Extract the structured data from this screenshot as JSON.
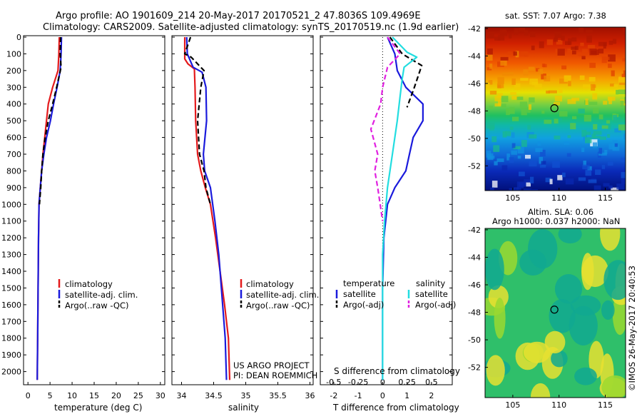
{
  "header": {
    "line1": "Argo profile: AO 1901609_214 20-May-2017 20170521_2 47.8036S 109.4969E",
    "line2": "Climatology: CARS2009. Satellite-adjusted climatology: synTS_20170519.nc (1.9d earlier)"
  },
  "depth_ticks": [
    "0",
    "100",
    "200",
    "300",
    "400",
    "500",
    "600",
    "700",
    "800",
    "900",
    "1000",
    "1100",
    "1200",
    "1300",
    "1400",
    "1500",
    "1600",
    "1700",
    "1800",
    "1900",
    "2000"
  ],
  "panels": {
    "temperature": {
      "xlabel": "temperature (deg C)",
      "xticks": [
        "0",
        "5",
        "10",
        "15",
        "20",
        "25",
        "30"
      ],
      "legend": [
        "climatology",
        "satellite-adj. clim.",
        "Argo(..raw -QC)"
      ]
    },
    "salinity": {
      "xlabel": "salinity",
      "xticks": [
        "34",
        "34.5",
        "35",
        "35.5",
        "36"
      ],
      "legend": [
        "climatology",
        "satellite-adj. clim.",
        "Argo(..raw -QC)"
      ],
      "credit1": "US ARGO PROJECT",
      "credit2": "PI: DEAN ROEMMICH"
    },
    "difference": {
      "top_label": "S difference from climatology",
      "top_ticks": [
        "-0.5",
        "-0.25",
        "0",
        "0.25",
        "0.5"
      ],
      "xlabel": "T difference from climatology",
      "xticks": [
        "-2",
        "-1",
        "0",
        "1",
        "2"
      ],
      "legend_temp_title": "temperature",
      "legend_sal_title": "salinity",
      "legend_temp": [
        "satellite",
        "Argo(-adj)"
      ],
      "legend_sal": [
        "satellite",
        "Argo(-adj)"
      ]
    }
  },
  "maps": {
    "sst": {
      "title": "sat. SST: 7.07  Argo: 7.38",
      "yticks": [
        "-42",
        "-44",
        "-46",
        "-48",
        "-50",
        "-52"
      ],
      "xticks": [
        "105",
        "110",
        "115"
      ]
    },
    "sla": {
      "title1": "Altim. SLA: 0.06",
      "title2": "Argo h1000: 0.037 h2000: NaN",
      "yticks": [
        "-42",
        "-44",
        "-46",
        "-48",
        "-50",
        "-52"
      ],
      "xticks": [
        "105",
        "110",
        "115"
      ]
    },
    "float_position": {
      "lon": 109.4969,
      "lat": -47.8036
    }
  },
  "footer": {
    "stamp": "©IMOS 26-May-2017 20:40:53"
  },
  "colors": {
    "climatology": "#e41a1c",
    "satellite": "#1a1adc",
    "argo": "#000000",
    "sal_satellite": "#22dde0",
    "sal_argo": "#e020e0"
  },
  "chart_data": [
    {
      "type": "line",
      "title": "",
      "xlabel": "temperature (deg C)",
      "ylabel": "",
      "xlim": [
        -1,
        31
      ],
      "ylim": [
        2070,
        0
      ],
      "series": [
        {
          "name": "climatology",
          "x": [
            7.1,
            7.0,
            6.8,
            5.6,
            4.6,
            4.2,
            3.8,
            3.4,
            3.1,
            2.8,
            2.5,
            2.4,
            2.3,
            2.2,
            2.1
          ],
          "y": [
            0,
            100,
            200,
            300,
            400,
            500,
            600,
            700,
            800,
            900,
            1000,
            1200,
            1500,
            1800,
            2050
          ]
        },
        {
          "name": "satellite-adj. clim.",
          "x": [
            7.6,
            7.5,
            7.3,
            6.6,
            5.8,
            5.1,
            4.2,
            3.6,
            3.1,
            2.8,
            2.5,
            2.4,
            2.3,
            2.2,
            2.1
          ],
          "y": [
            0,
            100,
            200,
            300,
            400,
            500,
            600,
            700,
            800,
            900,
            1000,
            1200,
            1500,
            1800,
            2050
          ]
        },
        {
          "name": "Argo(..raw -QC)",
          "x": [
            7.4,
            7.3,
            7.5,
            6.5,
            5.6,
            4.6,
            3.9,
            3.4,
            3.1,
            2.9,
            2.6
          ],
          "y": [
            0,
            100,
            180,
            300,
            400,
            500,
            600,
            700,
            800,
            900,
            1000
          ]
        }
      ]
    },
    {
      "type": "line",
      "title": "",
      "xlabel": "salinity",
      "ylabel": "",
      "xlim": [
        33.85,
        36.05
      ],
      "ylim": [
        2070,
        0
      ],
      "series": [
        {
          "name": "climatology",
          "x": [
            34.05,
            34.05,
            34.1,
            34.2,
            34.21,
            34.22,
            34.25,
            34.3,
            34.37,
            34.45,
            34.53,
            34.6,
            34.67,
            34.73,
            34.75
          ],
          "y": [
            0,
            130,
            160,
            190,
            300,
            500,
            700,
            800,
            900,
            1000,
            1200,
            1400,
            1600,
            1800,
            2050
          ]
        },
        {
          "name": "satellite-adj. clim.",
          "x": [
            34.08,
            34.09,
            34.18,
            34.32,
            34.38,
            34.39,
            34.34,
            34.36,
            34.45,
            34.52,
            34.58,
            34.62,
            34.68,
            34.7
          ],
          "y": [
            0,
            100,
            180,
            210,
            300,
            500,
            700,
            800,
            900,
            1100,
            1300,
            1500,
            1800,
            2050
          ]
        },
        {
          "name": "Argo(..raw -QC)",
          "x": [
            34.14,
            34.05,
            34.15,
            34.35,
            34.3,
            34.25,
            34.28,
            34.35,
            34.38,
            34.45
          ],
          "y": [
            0,
            100,
            120,
            200,
            300,
            500,
            700,
            800,
            900,
            1000
          ]
        }
      ]
    },
    {
      "type": "line",
      "title": "",
      "xlabel": "T difference from climatology",
      "ylabel": "",
      "xlim": [
        -2.55,
        2.85
      ],
      "ylim": [
        2070,
        0
      ],
      "series": [
        {
          "name": "temperature satellite",
          "x": [
            0.2,
            0.5,
            0.6,
            0.95,
            1.65,
            1.65,
            1.25,
            1.1,
            0.95,
            0.5,
            0.2,
            0.05,
            0,
            0
          ],
          "y": [
            0,
            100,
            200,
            300,
            400,
            500,
            600,
            700,
            800,
            900,
            1000,
            1200,
            1500,
            2050
          ]
        },
        {
          "name": "temperature Argo(-adj)",
          "x": [
            0.3,
            0.8,
            1.6,
            1.3,
            1.0
          ],
          "y": [
            0,
            100,
            170,
            300,
            420
          ]
        },
        {
          "name": "salinity satellite",
          "x": [
            0.1,
            0.25,
            0.35,
            0.22,
            0.2,
            0.18,
            0.15,
            0.1,
            0.05,
            0.02,
            0,
            0,
            0
          ],
          "y": [
            0,
            90,
            120,
            180,
            250,
            350,
            500,
            700,
            900,
            1100,
            1300,
            1600,
            2050
          ]
        },
        {
          "name": "salinity Argo(-adj)",
          "x": [
            0.05,
            0.18,
            0.05,
            0,
            -0.02,
            -0.12,
            -0.05,
            -0.08,
            -0.05,
            0
          ],
          "y": [
            0,
            100,
            180,
            300,
            400,
            550,
            700,
            800,
            900,
            1100
          ]
        }
      ]
    }
  ]
}
